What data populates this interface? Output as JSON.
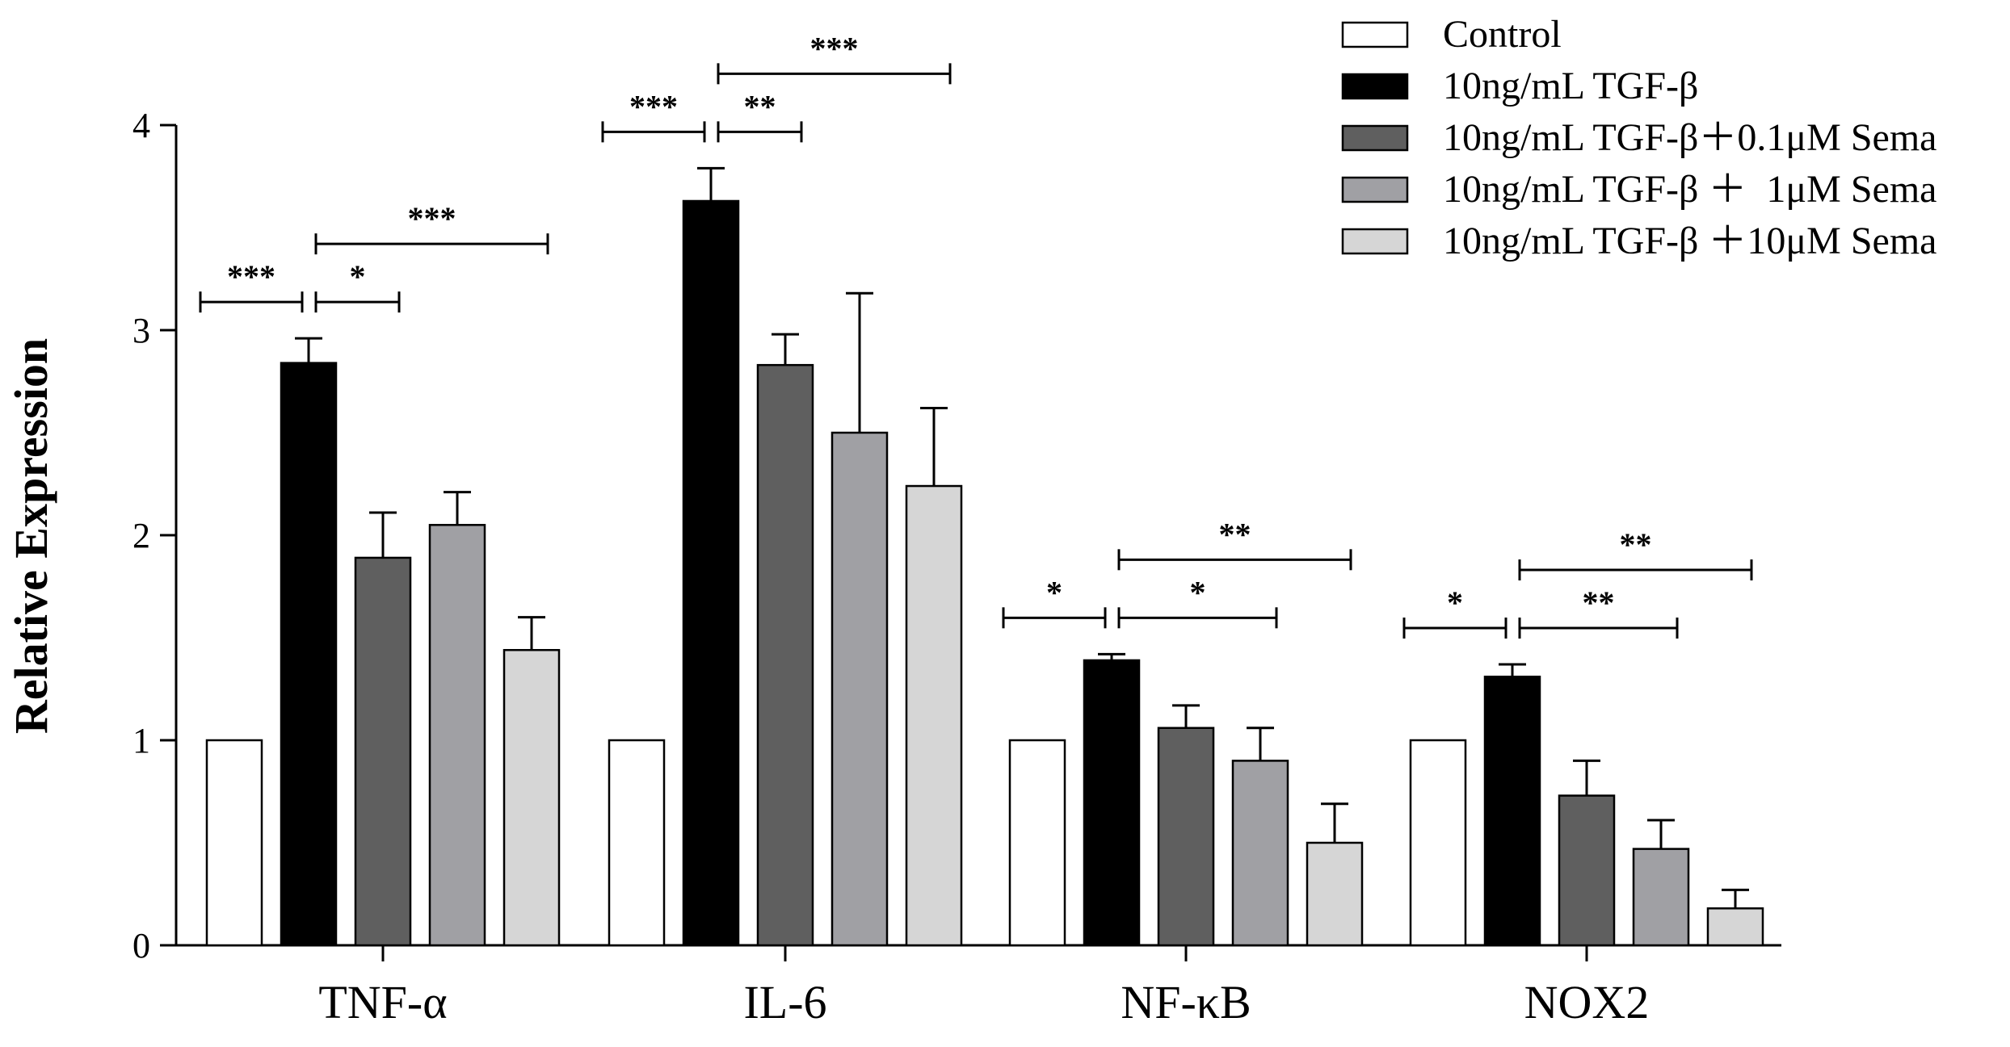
{
  "chart_data": {
    "type": "bar",
    "title": "",
    "xlabel": "",
    "ylabel": "Relative Expression",
    "ylim": [
      0,
      4
    ],
    "yticks": [
      "0",
      "1",
      "2",
      "3",
      "4"
    ],
    "grid": false,
    "legend_position": "top-right",
    "categories": [
      "TNF-α",
      "IL-6",
      "NF-κB",
      "NOX2"
    ],
    "series": [
      {
        "name": "Control",
        "color": "#ffffff",
        "values": [
          1.0,
          1.0,
          1.0,
          1.0
        ],
        "errors": [
          0,
          0,
          0,
          0
        ]
      },
      {
        "name": "10ng/mL TGF-β",
        "color": "#000000",
        "values": [
          2.84,
          3.63,
          1.39,
          1.31
        ],
        "errors": [
          0.12,
          0.16,
          0.03,
          0.06
        ]
      },
      {
        "name": "10ng/mL TGF-β＋0.1μM Sema",
        "color": "#5f5f5f",
        "values": [
          1.89,
          2.83,
          1.06,
          0.73
        ],
        "errors": [
          0.22,
          0.15,
          0.11,
          0.17
        ]
      },
      {
        "name": "10ng/mL TGF-β ＋  1μM Sema",
        "color": "#a0a0a4",
        "values": [
          2.05,
          2.5,
          0.9,
          0.47
        ],
        "errors": [
          0.16,
          0.68,
          0.16,
          0.14
        ]
      },
      {
        "name": "10ng/mL TGF-β ＋10μM Sema",
        "color": "#d6d6d6",
        "values": [
          1.44,
          2.24,
          0.5,
          0.18
        ],
        "errors": [
          0.16,
          0.38,
          0.19,
          0.09
        ]
      }
    ],
    "significance": [
      {
        "category": 0,
        "from": 0,
        "to": 1,
        "label": "***",
        "level": 1
      },
      {
        "category": 0,
        "from": 1,
        "to": 2,
        "label": "*",
        "level": 1
      },
      {
        "category": 0,
        "from": 1,
        "to": 4,
        "label": "***",
        "level": 2
      },
      {
        "category": 1,
        "from": 0,
        "to": 1,
        "label": "***",
        "level": 1
      },
      {
        "category": 1,
        "from": 1,
        "to": 2,
        "label": "**",
        "level": 1
      },
      {
        "category": 1,
        "from": 1,
        "to": 4,
        "label": "***",
        "level": 2
      },
      {
        "category": 2,
        "from": 0,
        "to": 1,
        "label": "*",
        "level": 1
      },
      {
        "category": 2,
        "from": 1,
        "to": 3,
        "label": "*",
        "level": 1
      },
      {
        "category": 2,
        "from": 1,
        "to": 4,
        "label": "**",
        "level": 2
      },
      {
        "category": 3,
        "from": 0,
        "to": 1,
        "label": "*",
        "level": 1
      },
      {
        "category": 3,
        "from": 1,
        "to": 3,
        "label": "**",
        "level": 1
      },
      {
        "category": 3,
        "from": 1,
        "to": 4,
        "label": "**",
        "level": 2
      }
    ]
  }
}
